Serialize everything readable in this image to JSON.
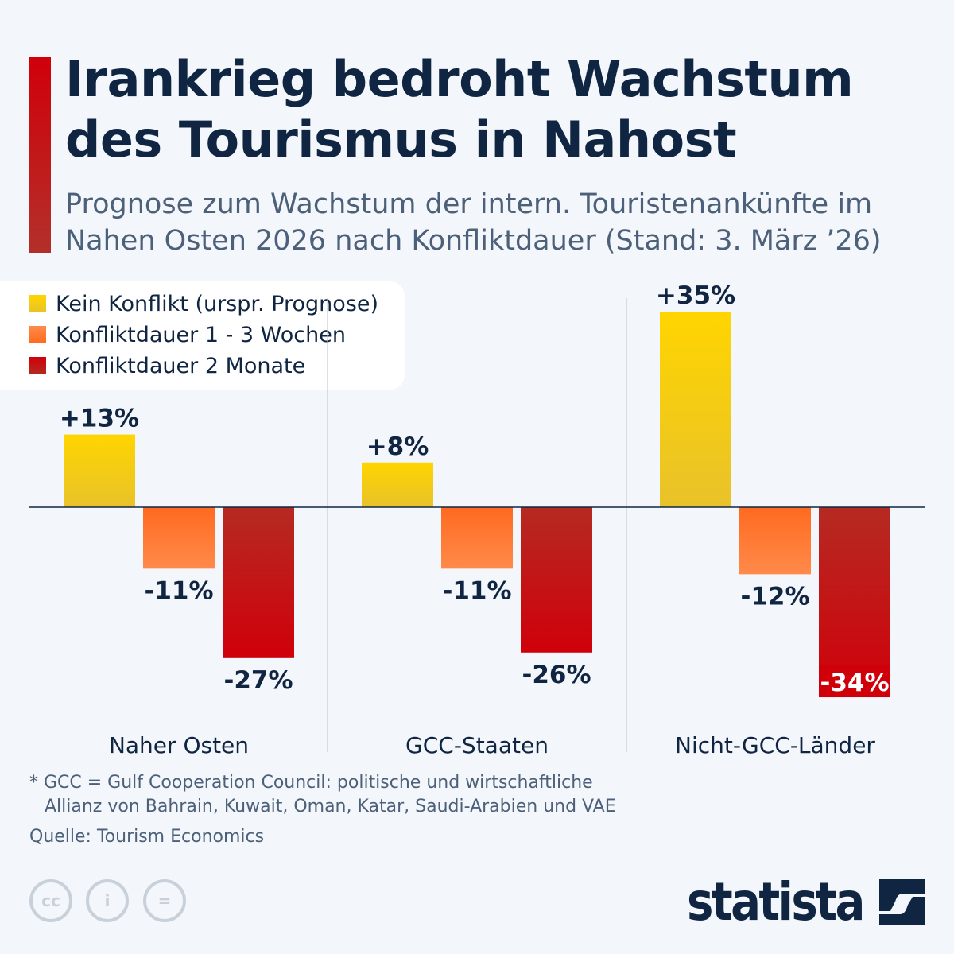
{
  "title": "Irankrieg bedroht Wachstum des Tourismus in Nahost",
  "title_lines": [
    "Irankrieg bedroht Wachstum",
    "des Tourismus in Nahost"
  ],
  "subtitle": "Prognose zum Wachstum der intern. Touristenankünfte im Nahen Osten 2026 nach Konfliktdauer (Stand: 3. März ’26)",
  "footnote": [
    "* GCC = Gulf Cooperation Council: politische und wirtschaftliche",
    "Allianz von Bahrain, Kuwait, Oman, Katar, Saudi-Arabien und VAE"
  ],
  "source": "Quelle: Tourism Economics",
  "brand": "statista",
  "license_icons": [
    "cc-icon",
    "attribution-icon",
    "no-derivatives-icon"
  ],
  "license_labels": [
    "cc",
    "i",
    "="
  ],
  "colors": {
    "accent": "#d0000a",
    "text": "#0f2542"
  },
  "chart_data": {
    "type": "bar",
    "categories": [
      "Naher Osten",
      "GCC-Staaten",
      "Nicht-GCC-Länder"
    ],
    "series": [
      {
        "name": "Kein Konflikt (urspr. Prognose)",
        "color": "#f5cf10",
        "values": [
          13,
          8,
          35
        ],
        "labels": [
          "+13%",
          "+8%",
          "+35%"
        ]
      },
      {
        "name": "Konfliktdauer 1 - 3 Wochen",
        "color": "#ff7a35",
        "values": [
          -11,
          -11,
          -12
        ],
        "labels": [
          "-11%",
          "-11%",
          "-12%"
        ]
      },
      {
        "name": "Konfliktdauer 2 Monate",
        "color": "#c8160f",
        "values": [
          -27,
          -26,
          -34
        ],
        "labels": [
          "-27%",
          "-26%",
          "-34%"
        ]
      }
    ],
    "unit": "%",
    "legend": "top-left",
    "grid": false
  }
}
